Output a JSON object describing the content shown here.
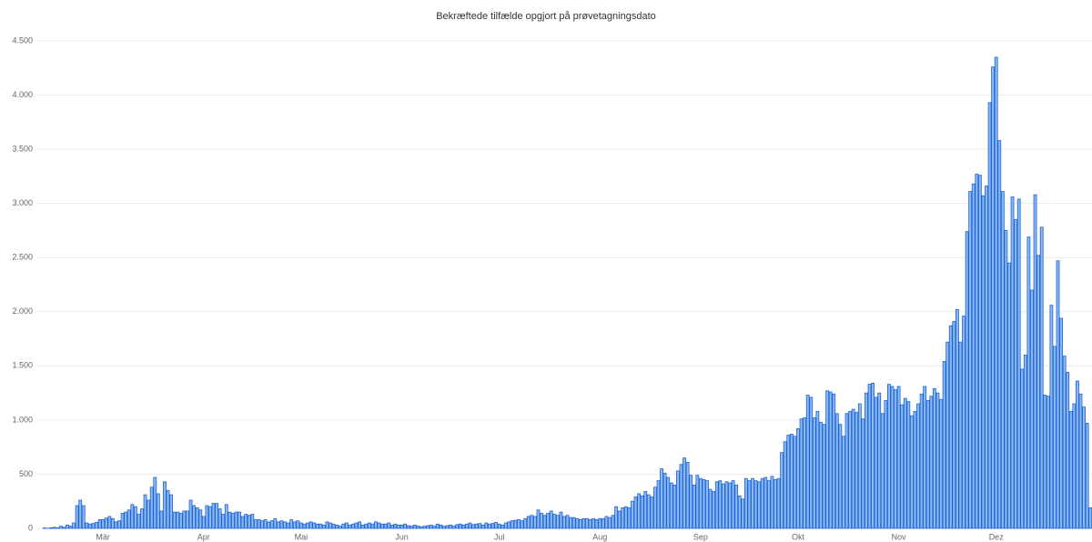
{
  "chart_data": {
    "type": "bar",
    "title": "Bekræftede tilfælde opgjort på prøvetagningsdato",
    "categories": [
      null,
      null,
      null,
      null,
      null,
      null,
      null,
      null,
      null,
      null,
      null,
      null,
      null,
      null,
      null,
      null,
      null,
      null,
      null,
      null,
      "Mär",
      null,
      null,
      null,
      null,
      null,
      null,
      null,
      null,
      null,
      null,
      null,
      null,
      null,
      null,
      null,
      null,
      null,
      null,
      null,
      null,
      null,
      null,
      null,
      null,
      null,
      null,
      null,
      null,
      null,
      null,
      "Apr",
      null,
      null,
      null,
      null,
      null,
      null,
      null,
      null,
      null,
      null,
      null,
      null,
      null,
      null,
      null,
      null,
      null,
      null,
      null,
      null,
      null,
      null,
      null,
      null,
      null,
      null,
      null,
      null,
      null,
      "Mai",
      null,
      null,
      null,
      null,
      null,
      null,
      null,
      null,
      null,
      null,
      null,
      null,
      null,
      null,
      null,
      null,
      null,
      null,
      null,
      null,
      null,
      null,
      null,
      null,
      null,
      null,
      null,
      null,
      null,
      null,
      "Jun",
      null,
      null,
      null,
      null,
      null,
      null,
      null,
      null,
      null,
      null,
      null,
      null,
      null,
      null,
      null,
      null,
      null,
      null,
      null,
      null,
      null,
      null,
      null,
      null,
      null,
      null,
      null,
      null,
      null,
      "Jul",
      null,
      null,
      null,
      null,
      null,
      null,
      null,
      null,
      null,
      null,
      null,
      null,
      null,
      null,
      null,
      null,
      null,
      null,
      null,
      null,
      null,
      null,
      null,
      null,
      null,
      null,
      null,
      null,
      null,
      null,
      "Aug",
      null,
      null,
      null,
      null,
      null,
      null,
      null,
      null,
      null,
      null,
      null,
      null,
      null,
      null,
      null,
      null,
      null,
      null,
      null,
      null,
      null,
      null,
      null,
      null,
      null,
      null,
      null,
      null,
      null,
      null,
      "Sep",
      null,
      null,
      null,
      null,
      null,
      null,
      null,
      null,
      null,
      null,
      null,
      null,
      null,
      null,
      null,
      null,
      null,
      null,
      null,
      null,
      null,
      null,
      null,
      null,
      null,
      null,
      null,
      null,
      null,
      "Okt",
      null,
      null,
      null,
      null,
      null,
      null,
      null,
      null,
      null,
      null,
      null,
      null,
      null,
      null,
      null,
      null,
      null,
      null,
      null,
      null,
      null,
      null,
      null,
      null,
      null,
      null,
      null,
      null,
      null,
      null,
      "Nov",
      null,
      null,
      null,
      null,
      null,
      null,
      null,
      null,
      null,
      null,
      null,
      null,
      null,
      null,
      null,
      null,
      null,
      null,
      null,
      null,
      null,
      null,
      null,
      null,
      null,
      null,
      null,
      null,
      null,
      "Dez",
      null,
      null,
      null,
      null,
      null,
      null,
      null,
      null,
      null,
      null,
      null,
      null,
      null,
      null,
      null,
      null,
      null,
      null,
      null,
      null,
      null,
      null,
      null,
      null,
      null,
      null,
      null,
      null,
      null
    ],
    "values": [
      0,
      0,
      4,
      1,
      5,
      10,
      5,
      20,
      10,
      30,
      20,
      50,
      210,
      260,
      210,
      50,
      40,
      45,
      55,
      80,
      80,
      95,
      110,
      90,
      60,
      70,
      140,
      150,
      170,
      220,
      200,
      130,
      180,
      310,
      260,
      380,
      470,
      320,
      160,
      430,
      350,
      310,
      150,
      150,
      140,
      160,
      160,
      260,
      210,
      190,
      170,
      110,
      210,
      200,
      230,
      230,
      180,
      130,
      220,
      150,
      140,
      150,
      150,
      110,
      130,
      120,
      130,
      80,
      80,
      70,
      80,
      60,
      70,
      90,
      60,
      70,
      60,
      50,
      80,
      60,
      70,
      50,
      40,
      50,
      60,
      50,
      40,
      40,
      30,
      60,
      50,
      40,
      30,
      20,
      40,
      50,
      30,
      40,
      50,
      60,
      30,
      40,
      50,
      40,
      60,
      50,
      40,
      40,
      50,
      30,
      40,
      30,
      30,
      40,
      25,
      20,
      30,
      20,
      15,
      20,
      25,
      30,
      20,
      40,
      30,
      20,
      25,
      30,
      20,
      35,
      40,
      30,
      40,
      50,
      35,
      40,
      45,
      30,
      50,
      40,
      45,
      55,
      40,
      30,
      50,
      60,
      70,
      75,
      80,
      70,
      90,
      110,
      120,
      110,
      170,
      140,
      120,
      140,
      160,
      130,
      120,
      150,
      110,
      120,
      100,
      100,
      90,
      80,
      90,
      90,
      80,
      90,
      80,
      90,
      90,
      110,
      100,
      120,
      200,
      160,
      190,
      200,
      190,
      250,
      290,
      320,
      300,
      340,
      310,
      290,
      380,
      440,
      550,
      510,
      470,
      420,
      400,
      530,
      590,
      650,
      610,
      490,
      400,
      490,
      460,
      450,
      440,
      360,
      340,
      430,
      440,
      410,
      430,
      420,
      440,
      400,
      300,
      270,
      460,
      440,
      460,
      440,
      430,
      460,
      470,
      440,
      480,
      450,
      460,
      700,
      800,
      860,
      870,
      850,
      920,
      1010,
      1020,
      1230,
      1210,
      1020,
      1080,
      980,
      960,
      1270,
      1260,
      1240,
      1060,
      960,
      850,
      1060,
      1080,
      1100,
      1070,
      1150,
      1010,
      1250,
      1330,
      1340,
      1210,
      1250,
      1060,
      1180,
      1330,
      1310,
      1280,
      1310,
      1140,
      1200,
      1170,
      1040,
      1080,
      1150,
      1240,
      1310,
      1180,
      1220,
      1290,
      1250,
      1190,
      1540,
      1720,
      1870,
      1910,
      2020,
      1720,
      1960,
      2740,
      3110,
      3180,
      3270,
      3260,
      3070,
      3160,
      3930,
      4260,
      4350,
      3580,
      3110,
      2750,
      2450,
      3060,
      2850,
      3040,
      1470,
      1600,
      2690,
      2200,
      3080,
      2520,
      2780,
      1230,
      1220,
      2060,
      1680,
      2470,
      1940,
      1590,
      1440,
      1080,
      1150,
      1360,
      1240,
      1120,
      970,
      190
    ],
    "color": "#8ab9f1",
    "edge_color": "#1f62d6",
    "ylim": [
      0,
      4500
    ],
    "yticks": [
      0,
      500,
      {
        "value": 1000,
        "label": "1.000"
      },
      {
        "value": 1500,
        "label": "1.500"
      },
      {
        "value": 2000,
        "label": "2.000"
      },
      {
        "value": 2500,
        "label": "2.500"
      },
      {
        "value": 3000,
        "label": "3.000"
      },
      {
        "value": 3500,
        "label": "3.500"
      },
      {
        "value": 4000,
        "label": "4.000"
      },
      {
        "value": 4500,
        "label": "4.500"
      }
    ],
    "grid": true
  }
}
